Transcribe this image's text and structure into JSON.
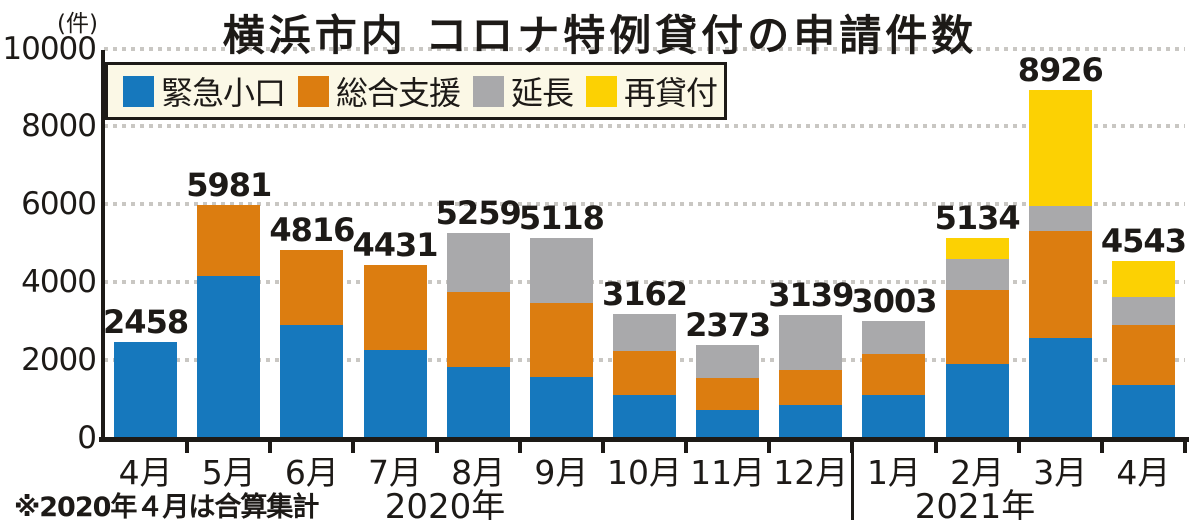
{
  "chart_data": {
    "type": "bar",
    "stacked": true,
    "title": "横浜市内 コロナ特例貸付の申請件数",
    "unit_label": "(件)",
    "footnote": "※2020年４月は合算集計",
    "categories": [
      "4月",
      "5月",
      "6月",
      "7月",
      "8月",
      "9月",
      "10月",
      "11月",
      "12月",
      "1月",
      "2月",
      "3月",
      "4月"
    ],
    "category_groups": [
      {
        "label": "2020年",
        "from": 0,
        "to": 8
      },
      {
        "label": "2021年",
        "from": 9,
        "to": 12
      }
    ],
    "totals": [
      2458,
      5981,
      4816,
      4431,
      5259,
      5118,
      3162,
      2373,
      3139,
      3003,
      5134,
      8926,
      4543
    ],
    "series": [
      {
        "name": "緊急小口",
        "color": "#1678bd",
        "values": [
          2458,
          4150,
          2900,
          2250,
          1810,
          1560,
          1090,
          710,
          835,
          1090,
          1900,
          2550,
          1350
        ]
      },
      {
        "name": "総合支援",
        "color": "#dc7d10",
        "values": [
          0,
          1831,
          1916,
          2181,
          1930,
          1890,
          1140,
          820,
          900,
          1055,
          1900,
          2750,
          1550
        ]
      },
      {
        "name": "延長",
        "color": "#a9a9ab",
        "values": [
          0,
          0,
          0,
          0,
          1519,
          1668,
          932,
          843,
          1404,
          858,
          800,
          650,
          720
        ]
      },
      {
        "name": "再貸付",
        "color": "#fcd103",
        "values": [
          0,
          0,
          0,
          0,
          0,
          0,
          0,
          0,
          0,
          0,
          534,
          2976,
          923
        ]
      }
    ],
    "ylim": [
      0,
      10000
    ],
    "yticks": [
      0,
      2000,
      4000,
      6000,
      8000,
      10000
    ],
    "grid": true,
    "legend_position": "top-left",
    "colors": {
      "axis": "#1d1a17",
      "gridline": "#c9c7c3",
      "legend_background": "#fbf8e6"
    }
  }
}
